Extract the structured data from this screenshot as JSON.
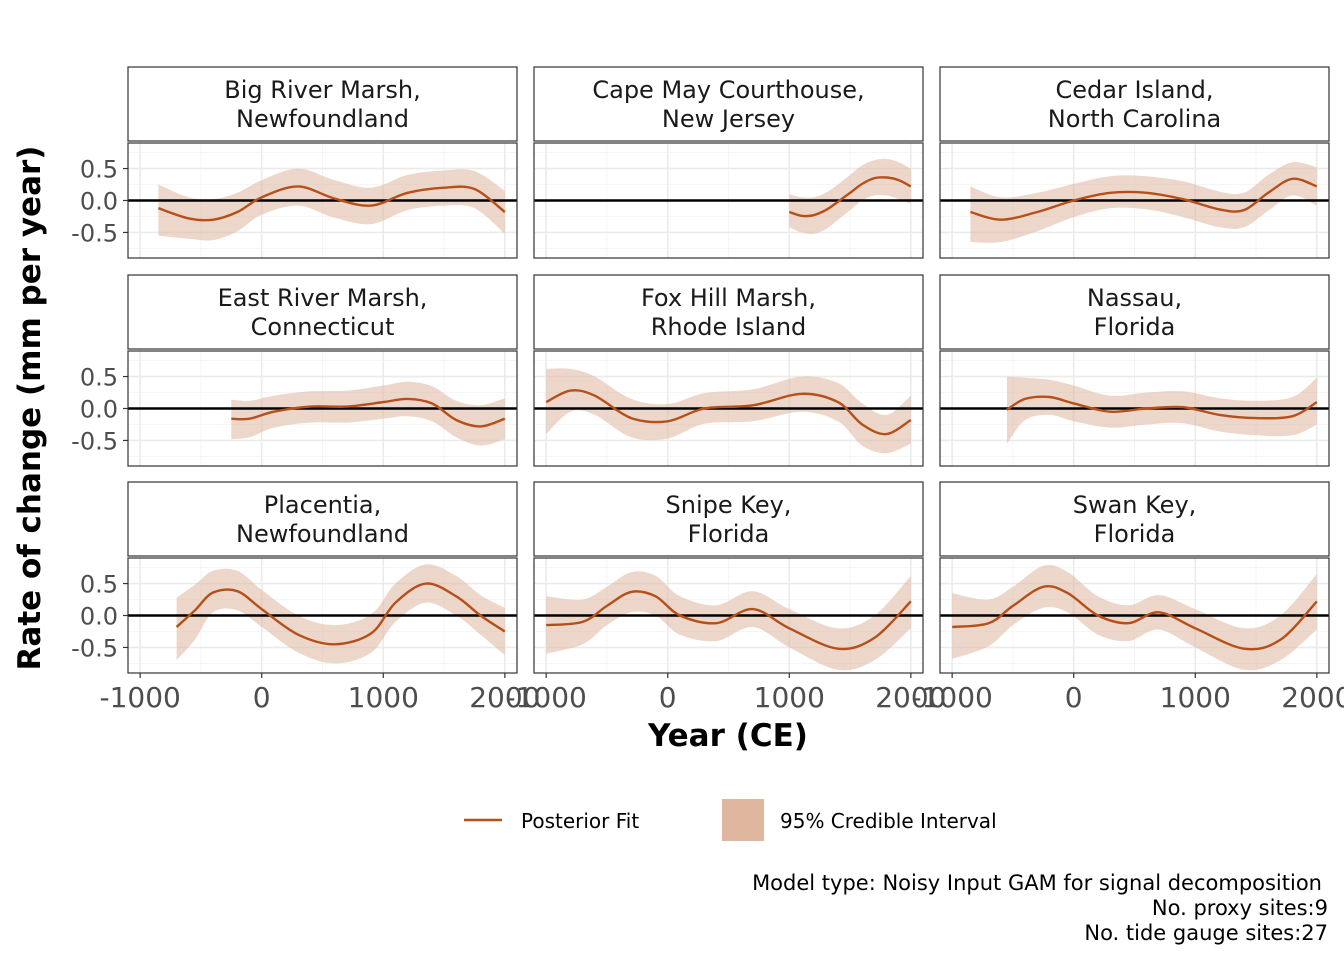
{
  "chart_data": {
    "type": "line",
    "layout": "facet-grid-3x3",
    "xlabel": "Year (CE)",
    "ylabel": "Rate of change (mm per year)",
    "xlim": [
      -1100,
      2100
    ],
    "ylim": [
      -0.9,
      0.9
    ],
    "x_ticks": [
      -1000,
      0,
      1000,
      2000
    ],
    "x_tick_labels": [
      "-1000",
      "0",
      "1000",
      "2000"
    ],
    "y_ticks": [
      -0.5,
      0.0,
      0.5
    ],
    "y_tick_labels": [
      "-0.5",
      "0.0",
      "0.5"
    ],
    "reference_line": 0,
    "grid": true,
    "colors": {
      "fit": "#b5501a",
      "band": "#dfb79f"
    },
    "legend": {
      "placement": "bottom",
      "fit_label": "Posterior Fit",
      "band_label": "95% Credible Interval"
    },
    "caption": {
      "line1": "Model type: Noisy Input GAM for signal decomposition",
      "line2": "No. proxy sites:9",
      "line3": "No. tide gauge sites:27"
    },
    "panels": [
      {
        "name_line1": "Big River Marsh,",
        "name_line2": "Newfoundland",
        "x": [
          -850,
          -600,
          -400,
          -200,
          0,
          300,
          600,
          900,
          1200,
          1500,
          1750,
          2000
        ],
        "y": [
          -0.12,
          -0.28,
          -0.3,
          -0.18,
          0.05,
          0.22,
          0.03,
          -0.08,
          0.12,
          0.2,
          0.18,
          -0.18
        ],
        "lower": [
          -0.55,
          -0.6,
          -0.62,
          -0.48,
          -0.22,
          -0.08,
          -0.27,
          -0.37,
          -0.15,
          -0.08,
          -0.12,
          -0.52
        ],
        "upper": [
          0.25,
          0.05,
          0.02,
          0.12,
          0.32,
          0.5,
          0.32,
          0.2,
          0.4,
          0.47,
          0.46,
          0.15
        ]
      },
      {
        "name_line1": "Cape May Courthouse,",
        "name_line2": "New Jersey",
        "x": [
          1000,
          1100,
          1200,
          1300,
          1400,
          1500,
          1600,
          1700,
          1800,
          1900,
          2000
        ],
        "y": [
          -0.18,
          -0.24,
          -0.23,
          -0.15,
          -0.02,
          0.12,
          0.26,
          0.35,
          0.36,
          0.32,
          0.22
        ],
        "lower": [
          -0.42,
          -0.5,
          -0.52,
          -0.45,
          -0.3,
          -0.15,
          0.0,
          0.08,
          0.08,
          0.02,
          -0.05
        ],
        "upper": [
          0.1,
          0.05,
          0.05,
          0.12,
          0.25,
          0.4,
          0.55,
          0.63,
          0.65,
          0.6,
          0.5
        ]
      },
      {
        "name_line1": "Cedar Island,",
        "name_line2": "North Carolina",
        "x": [
          -850,
          -600,
          -300,
          0,
          300,
          600,
          900,
          1200,
          1400,
          1600,
          1800,
          2000
        ],
        "y": [
          -0.18,
          -0.3,
          -0.18,
          0.0,
          0.12,
          0.12,
          0.02,
          -0.14,
          -0.15,
          0.12,
          0.34,
          0.22
        ],
        "lower": [
          -0.65,
          -0.65,
          -0.48,
          -0.26,
          -0.12,
          -0.14,
          -0.26,
          -0.42,
          -0.42,
          -0.16,
          0.08,
          -0.08
        ],
        "upper": [
          0.22,
          0.05,
          0.12,
          0.26,
          0.38,
          0.38,
          0.3,
          0.14,
          0.12,
          0.4,
          0.6,
          0.52
        ]
      },
      {
        "name_line1": "East River Marsh,",
        "name_line2": "Connecticut",
        "x": [
          -250,
          -100,
          100,
          400,
          700,
          1000,
          1200,
          1400,
          1600,
          1800,
          2000
        ],
        "y": [
          -0.16,
          -0.16,
          -0.05,
          0.03,
          0.03,
          0.1,
          0.15,
          0.08,
          -0.18,
          -0.28,
          -0.16
        ],
        "lower": [
          -0.48,
          -0.45,
          -0.3,
          -0.22,
          -0.22,
          -0.16,
          -0.12,
          -0.2,
          -0.45,
          -0.58,
          -0.48
        ],
        "upper": [
          0.14,
          0.12,
          0.2,
          0.27,
          0.28,
          0.36,
          0.42,
          0.35,
          0.12,
          0.05,
          0.16
        ]
      },
      {
        "name_line1": "Fox Hill Marsh,",
        "name_line2": "Rhode Island",
        "x": [
          -1000,
          -800,
          -600,
          -300,
          0,
          300,
          700,
          1100,
          1400,
          1600,
          1800,
          2000
        ],
        "y": [
          0.1,
          0.28,
          0.2,
          -0.15,
          -0.2,
          0.0,
          0.05,
          0.23,
          0.1,
          -0.25,
          -0.4,
          -0.18
        ],
        "lower": [
          -0.4,
          -0.05,
          -0.1,
          -0.45,
          -0.47,
          -0.24,
          -0.2,
          -0.05,
          -0.2,
          -0.58,
          -0.7,
          -0.55
        ],
        "upper": [
          0.62,
          0.62,
          0.5,
          0.15,
          0.07,
          0.24,
          0.3,
          0.5,
          0.4,
          0.08,
          -0.1,
          0.2
        ]
      },
      {
        "name_line1": "Nassau,",
        "name_line2": "Florida",
        "x": [
          -550,
          -400,
          -200,
          0,
          300,
          600,
          900,
          1200,
          1500,
          1800,
          2000
        ],
        "y": [
          -0.02,
          0.15,
          0.18,
          0.08,
          -0.05,
          0.0,
          0.02,
          -0.1,
          -0.15,
          -0.12,
          0.1
        ],
        "lower": [
          -0.55,
          -0.18,
          -0.1,
          -0.2,
          -0.3,
          -0.25,
          -0.23,
          -0.36,
          -0.42,
          -0.42,
          -0.25
        ],
        "upper": [
          0.5,
          0.48,
          0.45,
          0.36,
          0.2,
          0.25,
          0.27,
          0.16,
          0.12,
          0.18,
          0.48
        ]
      },
      {
        "name_line1": "Placentia,",
        "name_line2": "Newfoundland",
        "x": [
          -700,
          -550,
          -400,
          -200,
          0,
          300,
          600,
          900,
          1100,
          1350,
          1600,
          1800,
          2000
        ],
        "y": [
          -0.18,
          0.08,
          0.36,
          0.38,
          0.1,
          -0.3,
          -0.45,
          -0.28,
          0.2,
          0.5,
          0.3,
          0.0,
          -0.25
        ],
        "lower": [
          -0.7,
          -0.38,
          0.05,
          0.08,
          -0.18,
          -0.58,
          -0.75,
          -0.58,
          -0.1,
          0.2,
          0.0,
          -0.3,
          -0.62
        ],
        "upper": [
          0.28,
          0.48,
          0.7,
          0.7,
          0.4,
          0.0,
          -0.15,
          0.02,
          0.5,
          0.8,
          0.62,
          0.32,
          0.12
        ]
      },
      {
        "name_line1": "Snipe Key,",
        "name_line2": "Florida",
        "x": [
          -1000,
          -700,
          -500,
          -300,
          -100,
          100,
          400,
          700,
          1000,
          1400,
          1700,
          2000
        ],
        "y": [
          -0.15,
          -0.1,
          0.15,
          0.37,
          0.3,
          0.0,
          -0.12,
          0.1,
          -0.2,
          -0.52,
          -0.35,
          0.22
        ],
        "lower": [
          -0.6,
          -0.45,
          -0.15,
          0.05,
          0.0,
          -0.3,
          -0.4,
          -0.18,
          -0.5,
          -0.85,
          -0.7,
          -0.2
        ],
        "upper": [
          0.3,
          0.25,
          0.45,
          0.68,
          0.62,
          0.3,
          0.16,
          0.38,
          0.1,
          -0.2,
          0.0,
          0.62
        ]
      },
      {
        "name_line1": "Swan Key,",
        "name_line2": "Florida",
        "x": [
          -1000,
          -700,
          -500,
          -250,
          -50,
          200,
          450,
          700,
          1000,
          1400,
          1700,
          2000
        ],
        "y": [
          -0.18,
          -0.12,
          0.15,
          0.45,
          0.35,
          0.0,
          -0.12,
          0.05,
          -0.2,
          -0.52,
          -0.38,
          0.22
        ],
        "lower": [
          -0.68,
          -0.48,
          -0.15,
          0.12,
          0.05,
          -0.3,
          -0.4,
          -0.22,
          -0.5,
          -0.85,
          -0.7,
          -0.22
        ],
        "upper": [
          0.35,
          0.25,
          0.45,
          0.78,
          0.68,
          0.3,
          0.16,
          0.32,
          0.1,
          -0.2,
          0.0,
          0.65
        ]
      }
    ]
  }
}
